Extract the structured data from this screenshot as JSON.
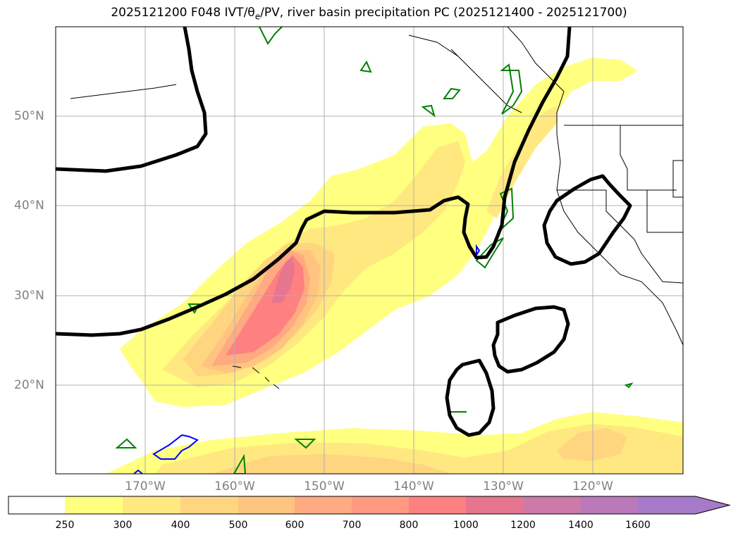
{
  "title": {
    "prefix": "2025121200 F048 IVT/",
    "theta": "θ",
    "theta_sub": "e",
    "suffix": "/PV, river basin precipitation PC (2025121400 - 2025121700)"
  },
  "map": {
    "lat_labels": [
      "50°N",
      "40°N",
      "30°N",
      "20°N"
    ],
    "lon_labels": [
      "170°W",
      "160°W",
      "150°W",
      "140°W",
      "130°W",
      "120°W"
    ]
  },
  "colorbar": {
    "ticks": [
      "250",
      "300",
      "400",
      "500",
      "600",
      "700",
      "800",
      "1000",
      "1200",
      "1400",
      "1600"
    ],
    "colors": [
      "#ffff80",
      "#ffe880",
      "#ffd580",
      "#ffc480",
      "#ffaa80",
      "#ff9980",
      "#ff8080",
      "#e6758f",
      "#cc7aa8",
      "#bb78bb",
      "#a67ac8"
    ]
  }
}
